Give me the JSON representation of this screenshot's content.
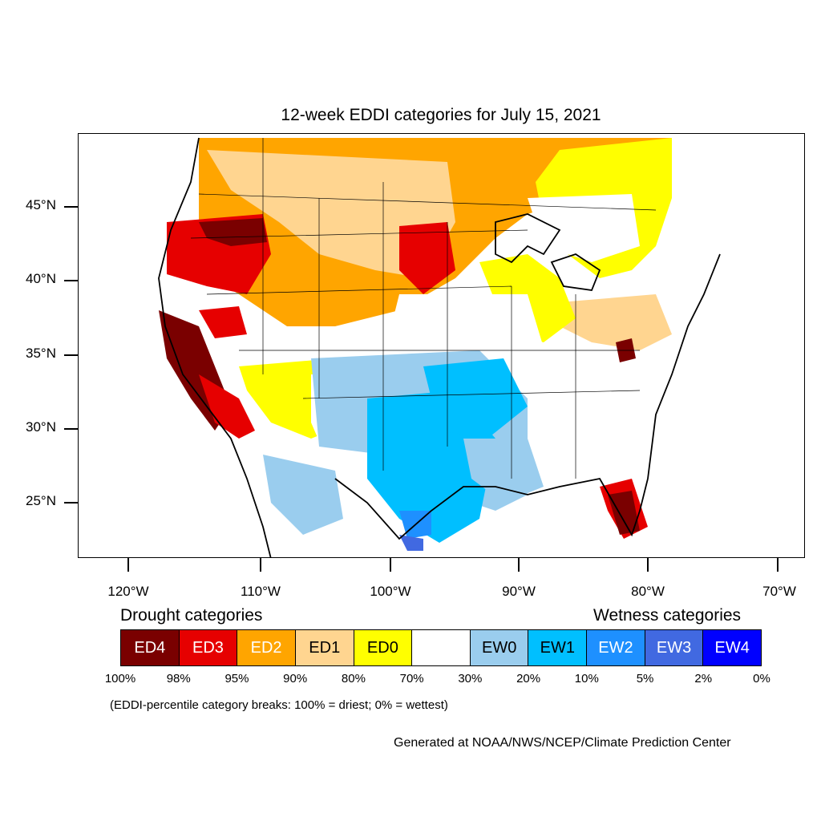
{
  "title": "12-week EDDI categories for July 15, 2021",
  "map": {
    "lat_labels": [
      "45°N",
      "40°N",
      "35°N",
      "30°N",
      "25°N"
    ],
    "lon_labels": [
      "120°W",
      "110°W",
      "100°W",
      "90°W",
      "80°W",
      "70°W"
    ]
  },
  "legend": {
    "drought_heading": "Drought categories",
    "wetness_heading": "Wetness categories",
    "categories": [
      {
        "label": "ED4",
        "color": "#7a0000",
        "text_color": "#ffffff"
      },
      {
        "label": "ED3",
        "color": "#e60000",
        "text_color": "#ffffff"
      },
      {
        "label": "ED2",
        "color": "#ffa500",
        "text_color": "#ffffff"
      },
      {
        "label": "ED1",
        "color": "#ffd590",
        "text_color": "#000000"
      },
      {
        "label": "ED0",
        "color": "#ffff00",
        "text_color": "#000000"
      },
      {
        "label": "",
        "color": "#ffffff",
        "text_color": "#000000"
      },
      {
        "label": "EW0",
        "color": "#9acdee",
        "text_color": "#000000"
      },
      {
        "label": "EW1",
        "color": "#00bfff",
        "text_color": "#000000"
      },
      {
        "label": "EW2",
        "color": "#1e90ff",
        "text_color": "#ffffff"
      },
      {
        "label": "EW3",
        "color": "#4169e1",
        "text_color": "#ffffff"
      },
      {
        "label": "EW4",
        "color": "#0000ff",
        "text_color": "#ffffff"
      }
    ],
    "percentiles": [
      "100%",
      "98%",
      "95%",
      "90%",
      "80%",
      "70%",
      "30%",
      "20%",
      "10%",
      "5%",
      "2%",
      "0%"
    ]
  },
  "note": "(EDDI-percentile category breaks: 100% = driest; 0% = wettest)",
  "credit": "Generated at NOAA/NWS/NCEP/Climate Prediction Center"
}
